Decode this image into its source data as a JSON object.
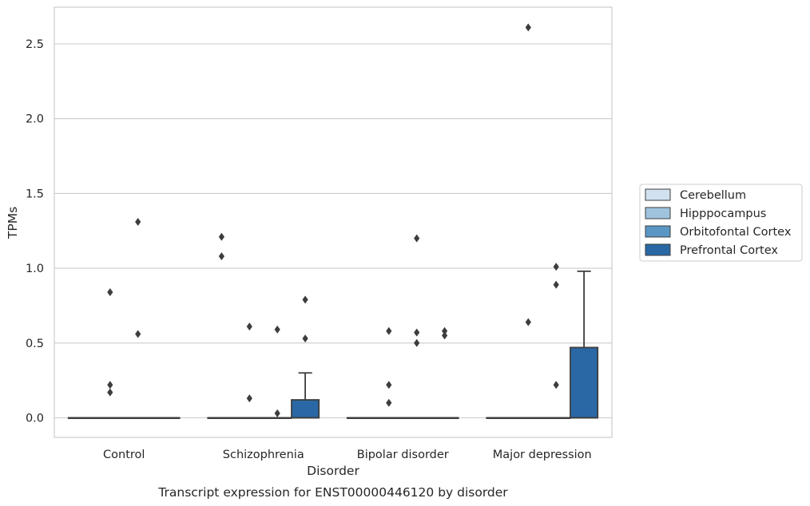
{
  "chart_data": {
    "type": "box",
    "xlabel": "Disorder",
    "ylabel": "TPMs",
    "caption": "Transcript expression for ENST00000446120 by disorder",
    "categories": [
      "Control",
      "Schizophrenia",
      "Bipolar disorder",
      "Major depression"
    ],
    "ylim": [
      -0.13,
      2.75
    ],
    "yticks": [
      "0.0",
      "0.5",
      "1.0",
      "1.5",
      "2.0",
      "2.5"
    ],
    "ytick_values": [
      0.0,
      0.5,
      1.0,
      1.5,
      2.0,
      2.5
    ],
    "grid": true,
    "legend_position": "right",
    "series": [
      {
        "name": "Cerebellum",
        "color": "#d1e1f0",
        "boxes": [
          {
            "q1": 0,
            "median": 0,
            "q3": 0,
            "whisker_low": 0,
            "whisker_high": 0,
            "outliers": []
          },
          {
            "q1": 0,
            "median": 0,
            "q3": 0,
            "whisker_low": 0,
            "whisker_high": 0,
            "outliers": [
              1.21,
              1.08
            ]
          },
          {
            "q1": 0,
            "median": 0,
            "q3": 0,
            "whisker_low": 0,
            "whisker_high": 0,
            "outliers": []
          },
          {
            "q1": 0,
            "median": 0,
            "q3": 0,
            "whisker_low": 0,
            "whisker_high": 0,
            "outliers": []
          }
        ]
      },
      {
        "name": "Hipppocampus",
        "color": "#9fc3de",
        "boxes": [
          {
            "q1": 0,
            "median": 0,
            "q3": 0,
            "whisker_low": 0,
            "whisker_high": 0,
            "outliers": [
              0.84,
              0.22,
              0.17
            ]
          },
          {
            "q1": 0,
            "median": 0,
            "q3": 0,
            "whisker_low": 0,
            "whisker_high": 0,
            "outliers": [
              0.61,
              0.13
            ]
          },
          {
            "q1": 0,
            "median": 0,
            "q3": 0,
            "whisker_low": 0,
            "whisker_high": 0,
            "outliers": [
              0.58,
              0.22,
              0.1
            ]
          },
          {
            "q1": 0,
            "median": 0,
            "q3": 0,
            "whisker_low": 0,
            "whisker_high": 0,
            "outliers": [
              2.61,
              0.64
            ]
          }
        ]
      },
      {
        "name": "Orbitofontal Cortex",
        "color": "#5a96c4",
        "boxes": [
          {
            "q1": 0,
            "median": 0,
            "q3": 0,
            "whisker_low": 0,
            "whisker_high": 0,
            "outliers": [
              1.31,
              0.56
            ]
          },
          {
            "q1": 0,
            "median": 0,
            "q3": 0,
            "whisker_low": 0,
            "whisker_high": 0,
            "outliers": [
              0.59,
              0.03
            ]
          },
          {
            "q1": 0,
            "median": 0,
            "q3": 0,
            "whisker_low": 0,
            "whisker_high": 0,
            "outliers": [
              1.2,
              0.57,
              0.5
            ]
          },
          {
            "q1": 0,
            "median": 0,
            "q3": 0,
            "whisker_low": 0,
            "whisker_high": 0,
            "outliers": [
              1.01,
              0.89,
              0.22
            ]
          }
        ]
      },
      {
        "name": "Prefrontal Cortex",
        "color": "#2a68a5",
        "boxes": [
          {
            "q1": 0,
            "median": 0,
            "q3": 0,
            "whisker_low": 0,
            "whisker_high": 0,
            "outliers": []
          },
          {
            "q1": 0,
            "median": 0,
            "q3": 0.12,
            "whisker_low": 0,
            "whisker_high": 0.3,
            "outliers": [
              0.79,
              0.53
            ]
          },
          {
            "q1": 0,
            "median": 0,
            "q3": 0,
            "whisker_low": 0,
            "whisker_high": 0,
            "outliers": [
              0.58,
              0.55
            ]
          },
          {
            "q1": 0,
            "median": 0,
            "q3": 0.47,
            "whisker_low": 0,
            "whisker_high": 0.98,
            "outliers": []
          }
        ]
      }
    ]
  }
}
